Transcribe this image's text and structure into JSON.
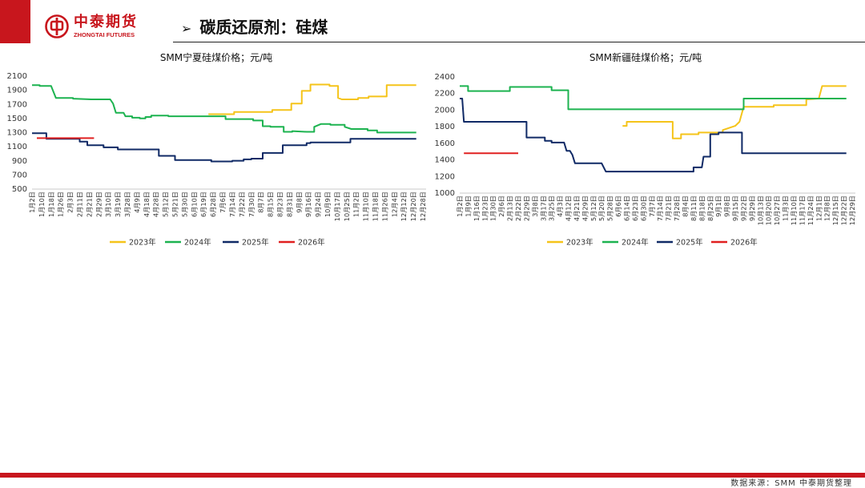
{
  "header": {
    "logo_cn": "中泰期货",
    "logo_en": "ZHONGTAI FUTURES",
    "title": "碳质还原剂：硅煤",
    "title_marker": "➢",
    "accent_color": "#c8161d"
  },
  "footer": {
    "source": "数据来源：SMM 中泰期货整理"
  },
  "chart_data": [
    {
      "type": "line",
      "title": "SMM宁夏硅煤价格；元/吨",
      "ylim": [
        500,
        2100
      ],
      "yticks": [
        500,
        700,
        900,
        1100,
        1300,
        1500,
        1700,
        1900,
        2100
      ],
      "categories": [
        "1月2日",
        "1月10日",
        "1月18日",
        "1月26日",
        "2月3日",
        "2月11日",
        "2月21日",
        "2月29日",
        "3月10日",
        "3月19日",
        "3月28日",
        "4月9日",
        "4月18日",
        "4月28日",
        "5月12日",
        "5月21日",
        "5月30日",
        "6月10日",
        "6月19日",
        "6月28日",
        "7月6日",
        "7月14日",
        "7月22日",
        "7月30日",
        "8月7日",
        "8月15日",
        "8月23日",
        "8月31日",
        "9月8日",
        "9月16日",
        "9月24日",
        "10月9日",
        "10月17日",
        "10月25日",
        "11月2日",
        "11月10日",
        "11月18日",
        "11月26日",
        "12月4日",
        "12月12日",
        "12月20日",
        "12月28日"
      ],
      "grid": false,
      "legend_position": "bottom",
      "series": [
        {
          "name": "2023年",
          "color": "#f5c41a",
          "points": [
            [
              18.5,
              1550
            ],
            [
              21.2,
              1550
            ],
            [
              21.2,
              1580
            ],
            [
              25.2,
              1580
            ],
            [
              25.2,
              1610
            ],
            [
              27.2,
              1610
            ],
            [
              27.2,
              1700
            ],
            [
              28.3,
              1700
            ],
            [
              28.3,
              1880
            ],
            [
              29.2,
              1880
            ],
            [
              29.2,
              1970
            ],
            [
              31.2,
              1970
            ],
            [
              31.2,
              1950
            ],
            [
              32.1,
              1950
            ],
            [
              32.1,
              1780
            ],
            [
              32.5,
              1760
            ],
            [
              34.2,
              1760
            ],
            [
              34.2,
              1780
            ],
            [
              35.3,
              1780
            ],
            [
              35.3,
              1800
            ],
            [
              37.2,
              1800
            ],
            [
              37.2,
              1960
            ],
            [
              40.3,
              1960
            ]
          ]
        },
        {
          "name": "2024年",
          "color": "#1db350",
          "points": [
            [
              0,
              1960
            ],
            [
              0.8,
              1960
            ],
            [
              0.8,
              1950
            ],
            [
              2,
              1950
            ],
            [
              2.5,
              1780
            ],
            [
              4.3,
              1780
            ],
            [
              4.3,
              1770
            ],
            [
              6.2,
              1760
            ],
            [
              8.2,
              1760
            ],
            [
              8.5,
              1700
            ],
            [
              8.8,
              1570
            ],
            [
              9.6,
              1570
            ],
            [
              9.8,
              1520
            ],
            [
              10.5,
              1520
            ],
            [
              10.5,
              1500
            ],
            [
              11.3,
              1500
            ],
            [
              11.3,
              1490
            ],
            [
              11.9,
              1490
            ],
            [
              11.9,
              1510
            ],
            [
              12.5,
              1510
            ],
            [
              12.5,
              1530
            ],
            [
              14.3,
              1530
            ],
            [
              14.3,
              1520
            ],
            [
              20.3,
              1520
            ],
            [
              20.3,
              1480
            ],
            [
              23.2,
              1480
            ],
            [
              23.2,
              1460
            ],
            [
              24.2,
              1460
            ],
            [
              24.2,
              1380
            ],
            [
              25,
              1380
            ],
            [
              25,
              1370
            ],
            [
              26.4,
              1370
            ],
            [
              26.4,
              1300
            ],
            [
              27.3,
              1300
            ],
            [
              27.3,
              1310
            ],
            [
              28.8,
              1300
            ],
            [
              29.6,
              1300
            ],
            [
              29.6,
              1370
            ],
            [
              30.3,
              1410
            ],
            [
              31.3,
              1410
            ],
            [
              31.3,
              1400
            ],
            [
              32.8,
              1400
            ],
            [
              32.8,
              1370
            ],
            [
              33.5,
              1340
            ],
            [
              35.2,
              1340
            ],
            [
              35.2,
              1320
            ],
            [
              36.2,
              1320
            ],
            [
              36.2,
              1290
            ],
            [
              37,
              1290
            ],
            [
              40.3,
              1290
            ]
          ]
        },
        {
          "name": "2025年",
          "color": "#102a66",
          "points": [
            [
              0,
              1280
            ],
            [
              1.5,
              1280
            ],
            [
              1.5,
              1200
            ],
            [
              5,
              1200
            ],
            [
              5,
              1160
            ],
            [
              5.8,
              1160
            ],
            [
              5.8,
              1110
            ],
            [
              7.5,
              1110
            ],
            [
              7.5,
              1080
            ],
            [
              9,
              1080
            ],
            [
              9,
              1050
            ],
            [
              13.3,
              1050
            ],
            [
              13.3,
              960
            ],
            [
              15,
              960
            ],
            [
              15,
              900
            ],
            [
              18.8,
              900
            ],
            [
              18.8,
              880
            ],
            [
              21,
              880
            ],
            [
              21,
              890
            ],
            [
              22.2,
              890
            ],
            [
              22.2,
              910
            ],
            [
              23,
              910
            ],
            [
              23,
              920
            ],
            [
              24.2,
              920
            ],
            [
              24.2,
              1000
            ],
            [
              26.3,
              1000
            ],
            [
              26.3,
              1110
            ],
            [
              28.8,
              1110
            ],
            [
              28.8,
              1140
            ],
            [
              29.2,
              1140
            ],
            [
              29.2,
              1150
            ],
            [
              33.4,
              1150
            ],
            [
              33.4,
              1200
            ],
            [
              40.3,
              1200
            ]
          ]
        },
        {
          "name": "2026年",
          "color": "#e02020",
          "points": [
            [
              0.5,
              1210
            ],
            [
              6.5,
              1210
            ]
          ]
        }
      ]
    },
    {
      "type": "line",
      "title": "SMM新疆硅煤价格；元/吨",
      "ylim": [
        1000,
        2400
      ],
      "yticks": [
        1000,
        1200,
        1400,
        1600,
        1800,
        2000,
        2200,
        2400
      ],
      "categories": [
        "1月2日",
        "1月9日",
        "1月16日",
        "1月23日",
        "1月30日",
        "2月6日",
        "2月13日",
        "2月22日",
        "2月29日",
        "3月8日",
        "3月17日",
        "3月25日",
        "4月3日",
        "4月12日",
        "4月21日",
        "4月29日",
        "5月12日",
        "5月20日",
        "5月28日",
        "6月6日",
        "6月14日",
        "6月23日",
        "6月30日",
        "7月7日",
        "7月14日",
        "7月21日",
        "7月28日",
        "8月4日",
        "8月11日",
        "8月18日",
        "8月25日",
        "9月1日",
        "9月8日",
        "9月15日",
        "9月22日",
        "9月29日",
        "10月13日",
        "10月20日",
        "10月27日",
        "11月3日",
        "11月10日",
        "11月17日",
        "11月24日",
        "12月1日",
        "12月8日",
        "12月15日",
        "12月22日",
        "12月29日"
      ],
      "grid": false,
      "legend_position": "bottom",
      "series": [
        {
          "name": "2023年",
          "color": "#f5c41a",
          "points": [
            [
              19.5,
              1800
            ],
            [
              20,
              1800
            ],
            [
              20,
              1850
            ],
            [
              25.5,
              1850
            ],
            [
              25.5,
              1650
            ],
            [
              26.5,
              1650
            ],
            [
              26.5,
              1700
            ],
            [
              28.6,
              1700
            ],
            [
              28.6,
              1720
            ],
            [
              31.5,
              1720
            ],
            [
              31.5,
              1750
            ],
            [
              33,
              1800
            ],
            [
              33.5,
              1850
            ],
            [
              34,
              2030
            ],
            [
              37.6,
              2030
            ],
            [
              37.6,
              2050
            ],
            [
              41.5,
              2050
            ],
            [
              41.5,
              2120
            ],
            [
              43,
              2130
            ],
            [
              43.4,
              2280
            ],
            [
              46.3,
              2280
            ]
          ]
        },
        {
          "name": "2024年",
          "color": "#1db350",
          "points": [
            [
              0,
              2280
            ],
            [
              1,
              2280
            ],
            [
              1,
              2220
            ],
            [
              6,
              2220
            ],
            [
              6,
              2270
            ],
            [
              11,
              2270
            ],
            [
              11,
              2230
            ],
            [
              13,
              2230
            ],
            [
              13,
              2000
            ],
            [
              34,
              2000
            ],
            [
              34,
              2130
            ],
            [
              46.3,
              2130
            ]
          ]
        },
        {
          "name": "2025年",
          "color": "#102a66",
          "points": [
            [
              0,
              2130
            ],
            [
              0.3,
              2130
            ],
            [
              0.5,
              1850
            ],
            [
              8,
              1850
            ],
            [
              8,
              1660
            ],
            [
              10.2,
              1660
            ],
            [
              10.2,
              1620
            ],
            [
              11,
              1620
            ],
            [
              11,
              1600
            ],
            [
              12.5,
              1600
            ],
            [
              12.8,
              1500
            ],
            [
              13.2,
              1500
            ],
            [
              13.5,
              1450
            ],
            [
              13.8,
              1350
            ],
            [
              17,
              1350
            ],
            [
              17.5,
              1250
            ],
            [
              28,
              1250
            ],
            [
              28,
              1300
            ],
            [
              29,
              1300
            ],
            [
              29.2,
              1430
            ],
            [
              30,
              1430
            ],
            [
              30,
              1700
            ],
            [
              31,
              1700
            ],
            [
              31,
              1720
            ],
            [
              33.8,
              1720
            ],
            [
              33.8,
              1470
            ],
            [
              46.3,
              1470
            ]
          ]
        },
        {
          "name": "2026年",
          "color": "#e02020",
          "points": [
            [
              0.5,
              1470
            ],
            [
              7,
              1470
            ]
          ]
        }
      ]
    }
  ]
}
